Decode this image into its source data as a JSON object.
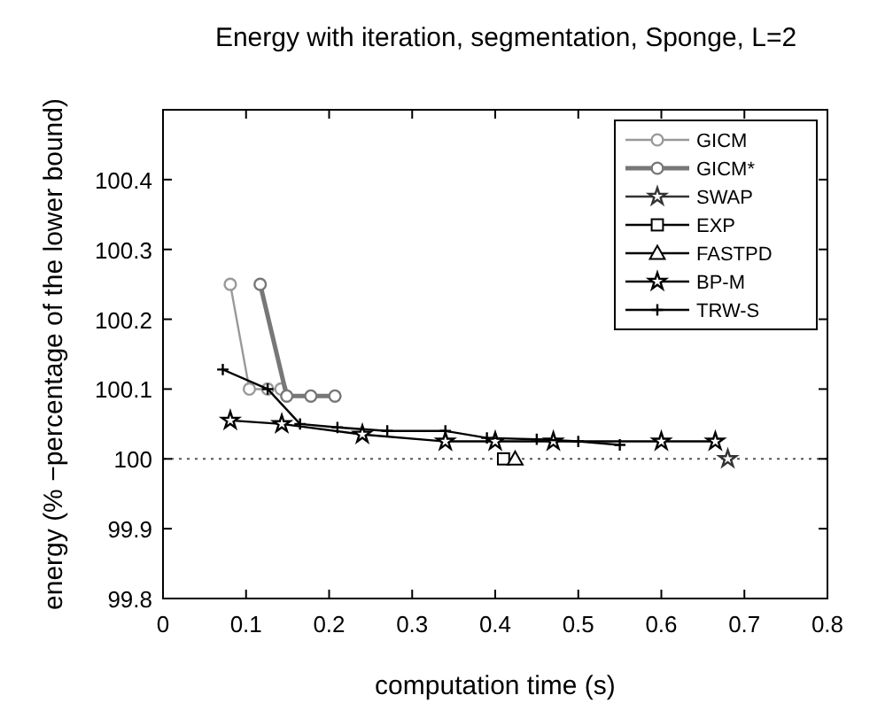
{
  "chart_data": {
    "type": "line",
    "title": "Energy with iteration, segmentation, Sponge, L=2",
    "xlabel": "computation time (s)",
    "ylabel": "energy (% −percentage of the lower bound)",
    "xlim": [
      0,
      0.8
    ],
    "xticks": [
      0,
      0.1,
      0.2,
      0.3,
      0.4,
      0.5,
      0.6,
      0.7,
      0.8
    ],
    "ylim": [
      99.8,
      100.5
    ],
    "yticks": [
      99.8,
      99.9,
      100,
      100.1,
      100.2,
      100.3,
      100.4
    ],
    "grid": false,
    "legend": "top right",
    "series": [
      {
        "name": "GICM",
        "color": "#999999",
        "marker": "circle",
        "x": [
          0.081,
          0.104,
          0.126,
          0.142
        ],
        "values": [
          100.25,
          100.1,
          100.1,
          100.1
        ]
      },
      {
        "name": "GICM*",
        "color": "#777777",
        "marker": "circle",
        "x": [
          0.117,
          0.149,
          0.178,
          0.207
        ],
        "values": [
          100.25,
          100.09,
          100.09,
          100.09
        ]
      },
      {
        "name": "SWAP",
        "color": "#333333",
        "marker": "star",
        "x": [
          0.68
        ],
        "values": [
          100
        ]
      },
      {
        "name": "EXP",
        "color": "#000000",
        "marker": "square",
        "x": [
          0.41
        ],
        "values": [
          100
        ]
      },
      {
        "name": "FASTPD",
        "color": "#000000",
        "marker": "triangle",
        "x": [
          0.424
        ],
        "values": [
          100
        ]
      },
      {
        "name": "BP-M",
        "color": "#000000",
        "marker": "star",
        "x": [
          0.081,
          0.143,
          0.24,
          0.34,
          0.4,
          0.47,
          0.6,
          0.665
        ],
        "values": [
          100.055,
          100.05,
          100.035,
          100.025,
          100.025,
          100.025,
          100.025,
          100.025
        ]
      },
      {
        "name": "TRW-S",
        "color": "#000000",
        "marker": "cross",
        "x": [
          0.072,
          0.126,
          0.165,
          0.21,
          0.27,
          0.34,
          0.39,
          0.45,
          0.5,
          0.55
        ],
        "values": [
          100.128,
          100.1,
          100.05,
          100.045,
          100.04,
          100.04,
          100.03,
          100.028,
          100.025,
          100.02
        ]
      }
    ],
    "ref_lines": [
      {
        "axis": "y",
        "value": 100,
        "color": "#555555",
        "line_style": "dotted"
      }
    ]
  }
}
